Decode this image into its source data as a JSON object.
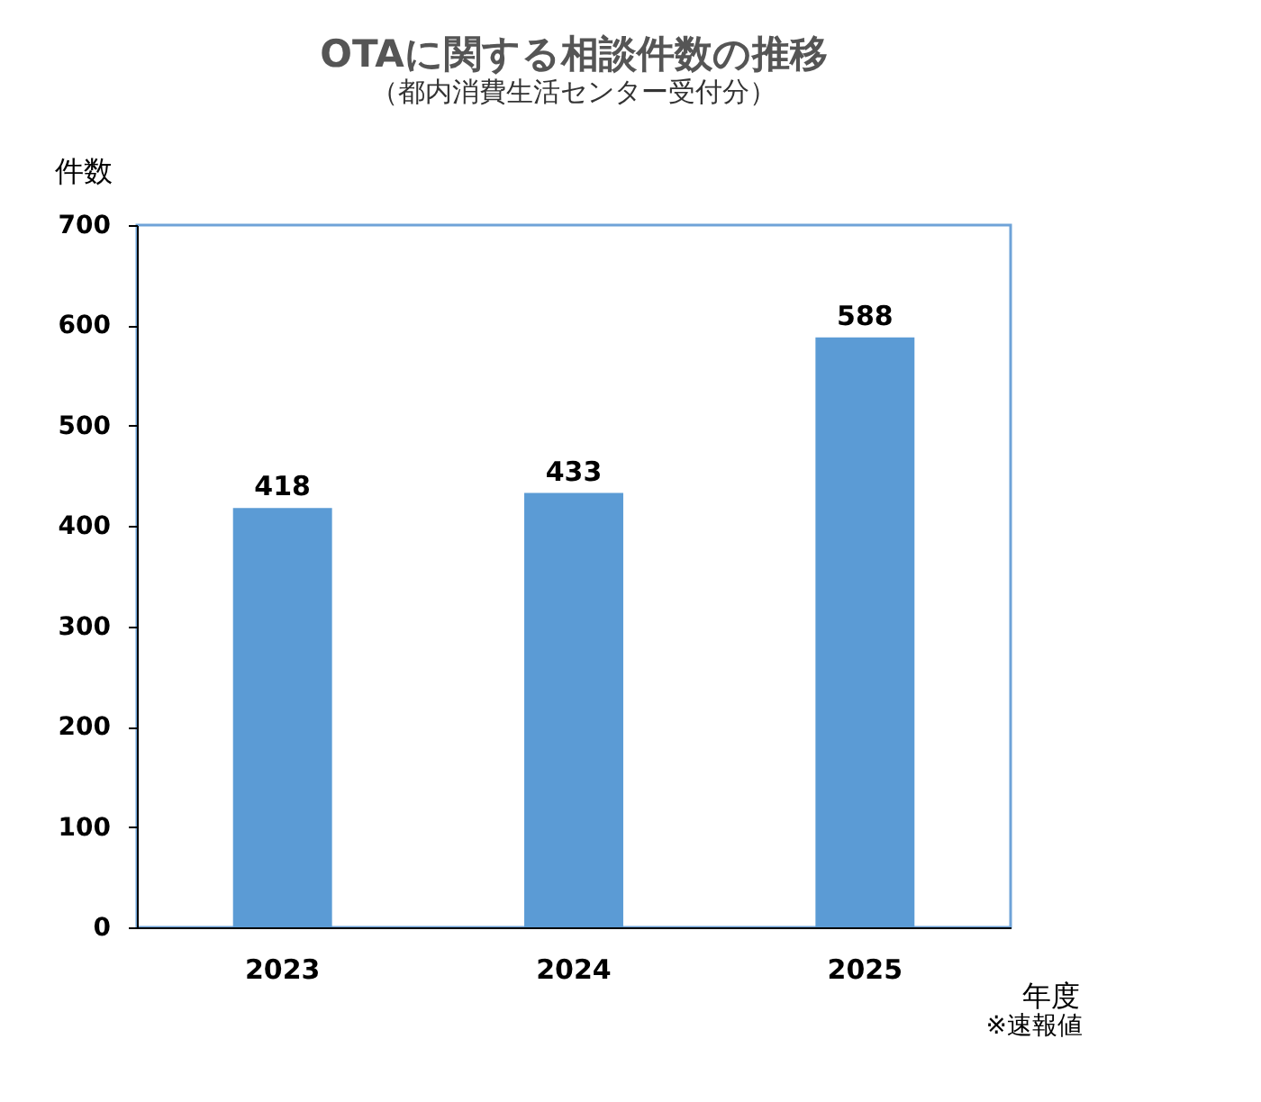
{
  "chart_data": {
    "type": "bar",
    "title": "OTAに関する相談件数の推移",
    "subtitle": "（都内消費生活センター受付分）",
    "ylabel": "件数",
    "xlabel": "年度",
    "categories": [
      "2023",
      "2024",
      "2025"
    ],
    "values": [
      418,
      433,
      588
    ],
    "color": "#5b9bd5",
    "ylim": [
      0,
      700
    ],
    "yticks": [
      0,
      100,
      200,
      300,
      400,
      500,
      600,
      700
    ],
    "grid": false,
    "data_labels": true,
    "annotations": [
      "※速報値"
    ]
  }
}
